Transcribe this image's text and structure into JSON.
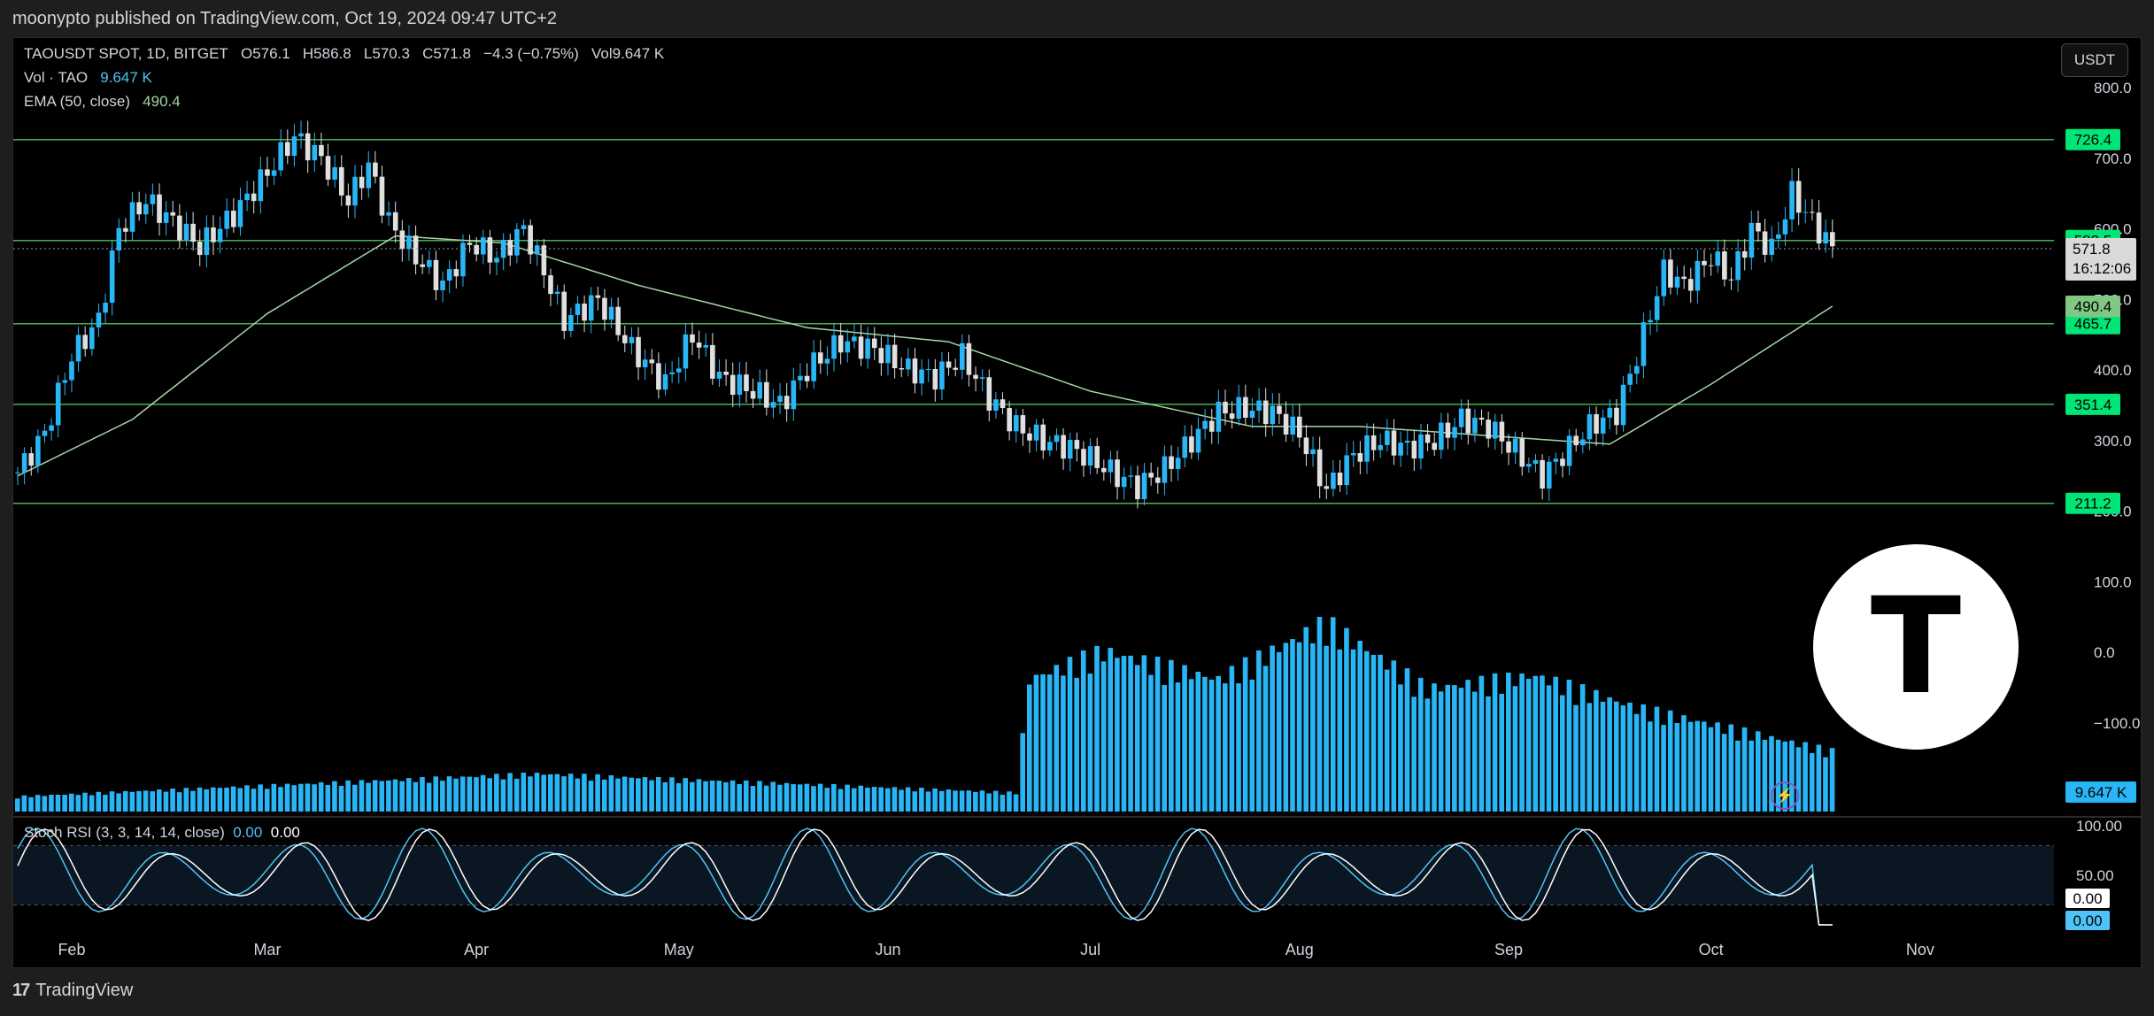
{
  "header": {
    "published": "moonypto published on TradingView.com, Oct 19, 2024 09:47 UTC+2"
  },
  "legend": {
    "symbol": "TAOUSDT SPOT, 1D, BITGET",
    "open": "O576.1",
    "high": "H586.8",
    "low": "L570.3",
    "close": "C571.8",
    "change": "−4.3 (−0.75%)",
    "vol": "Vol9.647 K",
    "vol_label": "Vol · TAO",
    "vol_value": "9.647 K",
    "ema_label": "EMA (50, close)",
    "ema_value": "490.4"
  },
  "currency_button": "USDT",
  "stoch": {
    "label": "Stoch RSI (3, 3, 14, 14, close)",
    "k_value": "0.00",
    "d_value": "0.00"
  },
  "footer": {
    "brand": "TradingView",
    "mark": "17"
  },
  "logo_letter": "T",
  "colors": {
    "up": "#29b6f6",
    "down": "#e0e0e0",
    "hline": "#4caf50",
    "label_green": "#00e676",
    "ema": "#a5d6a7",
    "volume": "#29b6f6",
    "stoch_k": "#4fc3f7",
    "stoch_d": "#ffffff"
  },
  "chart_data": {
    "type": "candlestick",
    "title": "TAOUSDT SPOT, 1D, BITGET",
    "x_labels": [
      "Feb",
      "Mar",
      "Apr",
      "May",
      "Jun",
      "Jul",
      "Aug",
      "Sep",
      "Oct",
      "Nov"
    ],
    "y_ticks": [
      "800.0",
      "700.0",
      "600.0",
      "500.0",
      "400.0",
      "300.0",
      "200.0",
      "100.0",
      "0.0",
      "−100.0"
    ],
    "ylim": [
      -100,
      800
    ],
    "horizontal_levels": [
      {
        "value": 726.4,
        "label": "726.4"
      },
      {
        "value": 583.5,
        "label": "583.5"
      },
      {
        "value": 465.7,
        "label": "465.7"
      },
      {
        "value": 351.4,
        "label": "351.4"
      },
      {
        "value": 211.2,
        "label": "211.2"
      }
    ],
    "last_price": {
      "value": 571.8,
      "label": "571.8",
      "countdown": "16:12:06"
    },
    "ema_last": {
      "value": 490.4,
      "label": "490.4"
    },
    "volume_last": {
      "label": "9.647 K"
    },
    "close_path": [
      {
        "date": "2024-01-24",
        "price": 255
      },
      {
        "date": "2024-01-28",
        "price": 310
      },
      {
        "date": "2024-02-01",
        "price": 420
      },
      {
        "date": "2024-02-05",
        "price": 470
      },
      {
        "date": "2024-02-08",
        "price": 600
      },
      {
        "date": "2024-02-12",
        "price": 640
      },
      {
        "date": "2024-02-16",
        "price": 610
      },
      {
        "date": "2024-02-20",
        "price": 575
      },
      {
        "date": "2024-02-25",
        "price": 620
      },
      {
        "date": "2024-03-01",
        "price": 680
      },
      {
        "date": "2024-03-05",
        "price": 730
      },
      {
        "date": "2024-03-09",
        "price": 700
      },
      {
        "date": "2024-03-13",
        "price": 640
      },
      {
        "date": "2024-03-16",
        "price": 690
      },
      {
        "date": "2024-03-19",
        "price": 610
      },
      {
        "date": "2024-03-23",
        "price": 560
      },
      {
        "date": "2024-03-27",
        "price": 520
      },
      {
        "date": "2024-03-31",
        "price": 580
      },
      {
        "date": "2024-04-04",
        "price": 560
      },
      {
        "date": "2024-04-08",
        "price": 600
      },
      {
        "date": "2024-04-11",
        "price": 540
      },
      {
        "date": "2024-04-14",
        "price": 470
      },
      {
        "date": "2024-04-19",
        "price": 500
      },
      {
        "date": "2024-04-24",
        "price": 430
      },
      {
        "date": "2024-04-29",
        "price": 380
      },
      {
        "date": "2024-05-03",
        "price": 450
      },
      {
        "date": "2024-05-07",
        "price": 390
      },
      {
        "date": "2024-05-12",
        "price": 370
      },
      {
        "date": "2024-05-16",
        "price": 350
      },
      {
        "date": "2024-05-20",
        "price": 400
      },
      {
        "date": "2024-05-25",
        "price": 440
      },
      {
        "date": "2024-05-30",
        "price": 430
      },
      {
        "date": "2024-06-04",
        "price": 400
      },
      {
        "date": "2024-06-08",
        "price": 390
      },
      {
        "date": "2024-06-12",
        "price": 420
      },
      {
        "date": "2024-06-16",
        "price": 360
      },
      {
        "date": "2024-06-20",
        "price": 320
      },
      {
        "date": "2024-06-24",
        "price": 300
      },
      {
        "date": "2024-06-28",
        "price": 290
      },
      {
        "date": "2024-07-01",
        "price": 275
      },
      {
        "date": "2024-07-05",
        "price": 250
      },
      {
        "date": "2024-07-08",
        "price": 235
      },
      {
        "date": "2024-07-12",
        "price": 260
      },
      {
        "date": "2024-07-16",
        "price": 300
      },
      {
        "date": "2024-07-20",
        "price": 340
      },
      {
        "date": "2024-07-24",
        "price": 345
      },
      {
        "date": "2024-07-28",
        "price": 340
      },
      {
        "date": "2024-08-01",
        "price": 310
      },
      {
        "date": "2024-08-05",
        "price": 230
      },
      {
        "date": "2024-08-09",
        "price": 280
      },
      {
        "date": "2024-08-13",
        "price": 300
      },
      {
        "date": "2024-08-17",
        "price": 290
      },
      {
        "date": "2024-08-21",
        "price": 300
      },
      {
        "date": "2024-08-25",
        "price": 330
      },
      {
        "date": "2024-08-29",
        "price": 320
      },
      {
        "date": "2024-09-02",
        "price": 285
      },
      {
        "date": "2024-09-06",
        "price": 250
      },
      {
        "date": "2024-09-09",
        "price": 280
      },
      {
        "date": "2024-09-13",
        "price": 320
      },
      {
        "date": "2024-09-17",
        "price": 340
      },
      {
        "date": "2024-09-20",
        "price": 420
      },
      {
        "date": "2024-09-24",
        "price": 540
      },
      {
        "date": "2024-09-27",
        "price": 520
      },
      {
        "date": "2024-10-01",
        "price": 560
      },
      {
        "date": "2024-10-04",
        "price": 530
      },
      {
        "date": "2024-10-07",
        "price": 600
      },
      {
        "date": "2024-10-10",
        "price": 570
      },
      {
        "date": "2024-10-13",
        "price": 650
      },
      {
        "date": "2024-10-16",
        "price": 610
      },
      {
        "date": "2024-10-19",
        "price": 571.8
      }
    ],
    "ema_path": [
      {
        "date": "2024-01-24",
        "value": 250
      },
      {
        "date": "2024-02-10",
        "value": 330
      },
      {
        "date": "2024-03-01",
        "value": 480
      },
      {
        "date": "2024-03-20",
        "value": 590
      },
      {
        "date": "2024-04-05",
        "value": 580
      },
      {
        "date": "2024-04-25",
        "value": 520
      },
      {
        "date": "2024-05-20",
        "value": 460
      },
      {
        "date": "2024-06-10",
        "value": 440
      },
      {
        "date": "2024-07-01",
        "value": 370
      },
      {
        "date": "2024-07-25",
        "value": 320
      },
      {
        "date": "2024-08-10",
        "value": 320
      },
      {
        "date": "2024-09-01",
        "value": 305
      },
      {
        "date": "2024-09-16",
        "value": 295
      },
      {
        "date": "2024-10-01",
        "value": 380
      },
      {
        "date": "2024-10-19",
        "value": 490.4
      }
    ],
    "volume_path": [
      {
        "date": "2024-01-24",
        "value": 0.08
      },
      {
        "date": "2024-04-10",
        "value": 0.2
      },
      {
        "date": "2024-06-20",
        "value": 0.1
      },
      {
        "date": "2024-06-22",
        "value": 0.7
      },
      {
        "date": "2024-07-03",
        "value": 0.85
      },
      {
        "date": "2024-07-20",
        "value": 0.7
      },
      {
        "date": "2024-08-05",
        "value": 1.0
      },
      {
        "date": "2024-08-20",
        "value": 0.65
      },
      {
        "date": "2024-09-05",
        "value": 0.72
      },
      {
        "date": "2024-09-20",
        "value": 0.55
      },
      {
        "date": "2024-10-19",
        "value": 0.32
      }
    ],
    "stoch_levels": [
      "100.00",
      "50.00"
    ],
    "stoch_ylim": [
      0,
      100
    ]
  }
}
